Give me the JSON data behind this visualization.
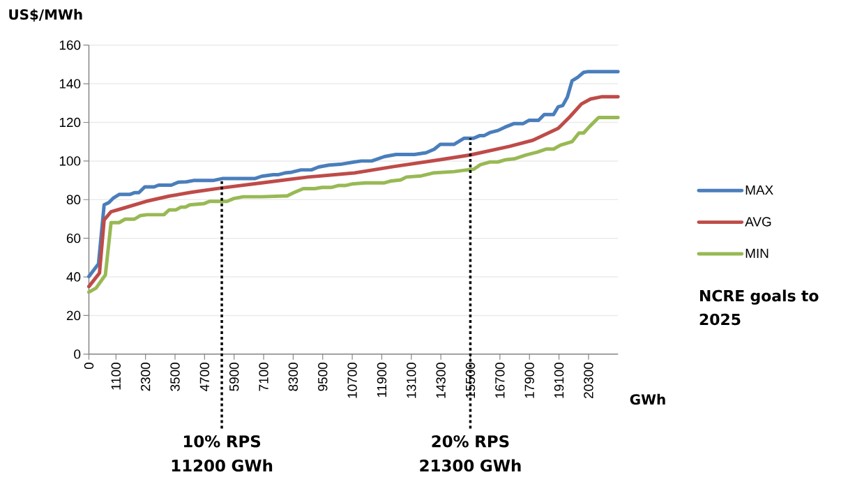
{
  "chart_data": {
    "type": "line",
    "ylabel": "US$/MWh",
    "xlabel": "GWh",
    "xlim": [
      0,
      21500
    ],
    "ylim": [
      0,
      160
    ],
    "xticks": [
      0,
      1100,
      2300,
      3500,
      4700,
      5900,
      7100,
      8300,
      9500,
      10700,
      11900,
      13100,
      14300,
      15500,
      16700,
      17900,
      19100,
      20300
    ],
    "yticks": [
      0,
      20,
      40,
      60,
      80,
      100,
      120,
      140,
      160
    ],
    "grid": "y",
    "legend": "right",
    "line_style": "solid",
    "marker": "none",
    "series": [
      {
        "name": "MAX",
        "color": "#4a7ebb",
        "x": [
          0,
          390,
          620,
          810,
          1000,
          1230,
          1660,
          1850,
          2030,
          2270,
          2650,
          2830,
          3350,
          3630,
          3960,
          4250,
          5040,
          5420,
          6740,
          7020,
          7490,
          7680,
          7960,
          8240,
          8620,
          9040,
          9330,
          9750,
          10220,
          10780,
          11070,
          11490,
          12010,
          12480,
          13230,
          13700,
          14030,
          14270,
          14830,
          15250,
          15630,
          15870,
          16050,
          16290,
          16620,
          16900,
          17280,
          17650,
          17890,
          18270,
          18500,
          18880,
          19070,
          19250,
          19440,
          19630,
          19860,
          20100,
          20290,
          21500
        ],
        "values": [
          40.2,
          46.8,
          77.3,
          78.5,
          80.9,
          82.7,
          82.7,
          83.6,
          83.6,
          86.6,
          86.6,
          87.5,
          87.5,
          89.0,
          89.2,
          89.9,
          89.9,
          90.9,
          90.9,
          92.1,
          92.9,
          92.9,
          93.8,
          94.2,
          95.4,
          95.4,
          96.9,
          97.9,
          98.3,
          99.5,
          100.0,
          100.0,
          102.3,
          103.4,
          103.4,
          104.3,
          106.1,
          108.6,
          108.6,
          111.8,
          111.8,
          113.1,
          113.1,
          114.7,
          115.8,
          117.5,
          119.4,
          119.4,
          121.1,
          121.1,
          124.1,
          124.1,
          128.1,
          128.7,
          133.1,
          141.5,
          143.3,
          145.9,
          146.3,
          146.3
        ]
      },
      {
        "name": "AVG",
        "color": "#be4b48",
        "x": [
          0,
          430,
          620,
          900,
          1380,
          2320,
          3260,
          4200,
          5420,
          7020,
          8900,
          10780,
          12380,
          14270,
          15490,
          17090,
          18030,
          19070,
          19540,
          20010,
          20380,
          20850,
          21500
        ],
        "values": [
          35.0,
          42.0,
          69.5,
          73.7,
          75.5,
          79.1,
          81.8,
          83.9,
          86.1,
          88.7,
          91.7,
          93.8,
          97.1,
          100.7,
          103.1,
          107.6,
          110.7,
          116.9,
          122.9,
          129.5,
          132.1,
          133.3,
          133.3
        ]
      },
      {
        "name": "MIN",
        "color": "#98b954",
        "x": [
          0,
          290,
          670,
          900,
          1230,
          1470,
          1850,
          2080,
          2360,
          3050,
          3260,
          3540,
          3730,
          3920,
          4100,
          4670,
          4900,
          5610,
          5890,
          6270,
          7020,
          7960,
          8050,
          8340,
          8710,
          9180,
          9470,
          9840,
          10130,
          10410,
          10690,
          11250,
          12010,
          12290,
          12670,
          12900,
          13510,
          13980,
          14830,
          15300,
          15630,
          15910,
          16290,
          16620,
          16950,
          17280,
          17750,
          18220,
          18590,
          18880,
          19160,
          19630,
          19910,
          20100,
          20330,
          20710,
          21500
        ],
        "values": [
          32.1,
          34.2,
          41.0,
          68.1,
          68.1,
          69.9,
          69.9,
          71.7,
          72.2,
          72.2,
          74.7,
          74.7,
          76.1,
          76.1,
          77.3,
          77.9,
          79.1,
          79.1,
          80.6,
          81.5,
          81.5,
          81.9,
          81.9,
          83.7,
          85.7,
          85.7,
          86.3,
          86.3,
          87.3,
          87.3,
          88.1,
          88.7,
          88.7,
          89.7,
          90.2,
          91.7,
          92.3,
          93.8,
          94.5,
          95.3,
          95.7,
          98.1,
          99.5,
          99.5,
          100.7,
          101.1,
          103.1,
          104.6,
          106.2,
          106.2,
          108.2,
          110.0,
          114.5,
          114.5,
          117.7,
          122.5,
          122.5
        ]
      }
    ],
    "ref_lines": [
      {
        "axis": "x",
        "value": 5400,
        "label": "10% RPS 11200 GWh",
        "color": "#000000",
        "line_style": "dotted"
      },
      {
        "axis": "x",
        "value": 15500,
        "label": "20% RPS 21300 GWh",
        "color": "#000000",
        "line_style": "dotted"
      }
    ],
    "annotations": [
      "NCRE goals to 2025"
    ]
  }
}
